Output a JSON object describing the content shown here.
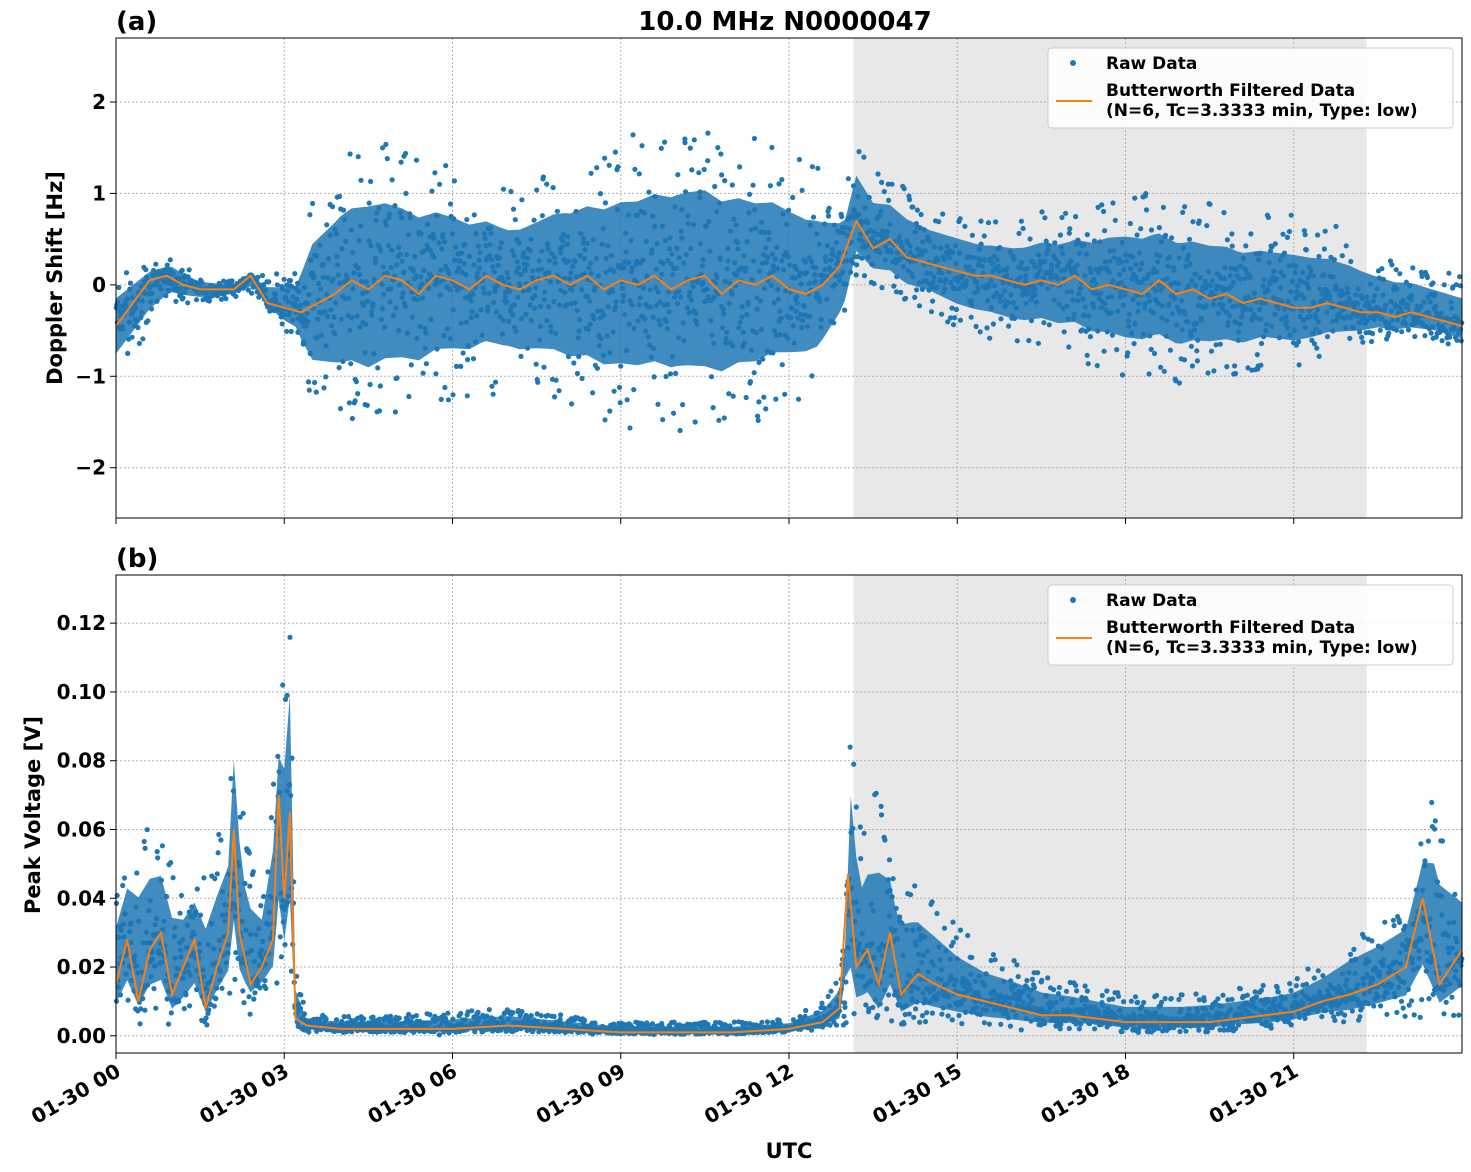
{
  "figure": {
    "title": "10.0 MHz N0000047",
    "xlabel": "UTC"
  },
  "colors": {
    "raw": "#1f77b4",
    "filtered": "#ff7f0e",
    "shade": "#e8e8e8"
  },
  "chart_data": [
    {
      "type": "scatter",
      "panel_label": "(a)",
      "ylabel": "Doppler Shift [Hz]",
      "xlim": [
        0,
        24
      ],
      "ylim": [
        -2.55,
        2.7
      ],
      "x_ticks": [
        0,
        3,
        6,
        9,
        12,
        15,
        18,
        21
      ],
      "x_tick_labels": [
        "01-30 00",
        "01-30 03",
        "01-30 06",
        "01-30 09",
        "01-30 12",
        "01-30 15",
        "01-30 18",
        "01-30 21"
      ],
      "y_ticks": [
        -2,
        -1,
        0,
        1,
        2
      ],
      "y_tick_labels": [
        "−2",
        "−1",
        "0",
        "1",
        "2"
      ],
      "grid": true,
      "shaded_span": [
        13.15,
        22.3
      ],
      "legend": {
        "placement": "upper right",
        "raw_label": "Raw Data",
        "filtered_label_1": "Butterworth Filtered Data",
        "filtered_label_2": "(N=6, Tc=3.3333 min, Type: low)"
      },
      "series": [
        {
          "name": "Raw Data",
          "style": "points",
          "note_envelope": "spread of raw points around filtered curve",
          "x": [
            0,
            0.5,
            1,
            1.5,
            2,
            2.5,
            3,
            3.2,
            3.5,
            4,
            4.5,
            5,
            5.5,
            6,
            6.5,
            7,
            7.5,
            8,
            8.5,
            9,
            9.5,
            10,
            10.5,
            11,
            11.5,
            12,
            12.5,
            13,
            13.2,
            13.5,
            14,
            14.5,
            15,
            15.5,
            16,
            16.5,
            17,
            17.5,
            18,
            18.5,
            19,
            19.5,
            20,
            20.5,
            21,
            21.5,
            22,
            22.5,
            23,
            23.5,
            24
          ],
          "lower": [
            -1.0,
            -0.6,
            -0.2,
            -0.2,
            -0.15,
            -0.1,
            -0.5,
            -0.6,
            -1.3,
            -1.5,
            -1.6,
            -1.5,
            -1.4,
            -1.3,
            -1.2,
            -1.2,
            -1.3,
            -1.4,
            -1.5,
            -1.6,
            -1.6,
            -1.6,
            -1.7,
            -1.6,
            -1.5,
            -1.3,
            -1.2,
            -0.6,
            0.1,
            0.0,
            -0.2,
            -0.3,
            -0.5,
            -0.6,
            -0.7,
            -0.7,
            -0.8,
            -0.9,
            -1.0,
            -1.0,
            -1.1,
            -1.0,
            -1.0,
            -0.9,
            -0.9,
            -0.8,
            -0.7,
            -0.6,
            -0.6,
            -0.6,
            -0.7
          ],
          "upper": [
            0.1,
            0.2,
            0.3,
            0.1,
            0.05,
            0.1,
            0.15,
            0.2,
            1.0,
            1.4,
            1.6,
            1.5,
            1.4,
            1.3,
            1.2,
            1.1,
            1.2,
            1.4,
            1.5,
            1.6,
            1.7,
            1.8,
            1.8,
            1.7,
            1.6,
            1.5,
            1.3,
            1.0,
            1.6,
            1.3,
            1.1,
            0.9,
            0.8,
            0.7,
            0.7,
            0.8,
            0.8,
            0.9,
            1.0,
            1.0,
            0.9,
            0.9,
            0.8,
            0.8,
            0.8,
            0.7,
            0.6,
            0.4,
            0.3,
            0.2,
            0.1
          ]
        },
        {
          "name": "Butterworth Filtered Data",
          "style": "line",
          "x": [
            0,
            0.3,
            0.6,
            0.9,
            1.2,
            1.5,
            1.8,
            2.1,
            2.4,
            2.7,
            3.0,
            3.3,
            3.6,
            3.9,
            4.2,
            4.5,
            4.8,
            5.1,
            5.4,
            5.7,
            6.0,
            6.3,
            6.6,
            6.9,
            7.2,
            7.5,
            7.8,
            8.1,
            8.4,
            8.7,
            9.0,
            9.3,
            9.6,
            9.9,
            10.2,
            10.5,
            10.8,
            11.1,
            11.4,
            11.7,
            12.0,
            12.3,
            12.6,
            12.9,
            13.2,
            13.5,
            13.8,
            14.1,
            14.4,
            14.7,
            15.0,
            15.3,
            15.6,
            15.9,
            16.2,
            16.5,
            16.8,
            17.1,
            17.4,
            17.7,
            18.0,
            18.3,
            18.6,
            18.9,
            19.2,
            19.5,
            19.8,
            20.1,
            20.4,
            20.7,
            21.0,
            21.3,
            21.6,
            21.9,
            22.2,
            22.5,
            22.8,
            23.1,
            23.4,
            23.7,
            24.0
          ],
          "y": [
            -0.45,
            -0.2,
            0.05,
            0.1,
            0.0,
            -0.05,
            -0.05,
            -0.05,
            0.1,
            -0.2,
            -0.25,
            -0.3,
            -0.2,
            -0.1,
            0.05,
            -0.05,
            0.1,
            0.05,
            -0.1,
            0.1,
            0.05,
            -0.05,
            0.1,
            0.0,
            -0.05,
            0.05,
            0.1,
            0.0,
            0.1,
            -0.05,
            0.05,
            0.0,
            0.1,
            -0.05,
            0.05,
            0.1,
            -0.1,
            0.05,
            0.0,
            0.1,
            -0.05,
            -0.1,
            0.0,
            0.2,
            0.7,
            0.4,
            0.5,
            0.3,
            0.25,
            0.2,
            0.15,
            0.1,
            0.1,
            0.05,
            0.0,
            0.05,
            0.0,
            0.1,
            -0.05,
            0.0,
            -0.05,
            -0.1,
            0.05,
            -0.1,
            -0.05,
            -0.15,
            -0.1,
            -0.2,
            -0.15,
            -0.2,
            -0.25,
            -0.25,
            -0.2,
            -0.25,
            -0.3,
            -0.3,
            -0.35,
            -0.3,
            -0.35,
            -0.4,
            -0.45
          ]
        }
      ]
    },
    {
      "type": "scatter",
      "panel_label": "(b)",
      "ylabel": "Peak Voltage [V]",
      "xlim": [
        0,
        24
      ],
      "ylim": [
        -0.005,
        0.134
      ],
      "x_ticks": [
        0,
        3,
        6,
        9,
        12,
        15,
        18,
        21
      ],
      "x_tick_labels": [
        "01-30 00",
        "01-30 03",
        "01-30 06",
        "01-30 09",
        "01-30 12",
        "01-30 15",
        "01-30 18",
        "01-30 21"
      ],
      "y_ticks": [
        0.0,
        0.02,
        0.04,
        0.06,
        0.08,
        0.1,
        0.12
      ],
      "y_tick_labels": [
        "0.00",
        "0.02",
        "0.04",
        "0.06",
        "0.08",
        "0.10",
        "0.12"
      ],
      "grid": true,
      "shaded_span": [
        13.15,
        22.3
      ],
      "legend": {
        "placement": "upper right",
        "raw_label": "Raw Data",
        "filtered_label_1": "Butterworth Filtered Data",
        "filtered_label_2": "(N=6, Tc=3.3333 min, Type: low)"
      },
      "series": [
        {
          "name": "Raw Data",
          "style": "points",
          "x": [
            0,
            0.4,
            0.8,
            1.2,
            1.6,
            2.0,
            2.1,
            2.3,
            2.6,
            2.9,
            3.1,
            3.2,
            3.4,
            4,
            5,
            6,
            7,
            8,
            9,
            10,
            11,
            12,
            12.6,
            13.0,
            13.1,
            13.3,
            13.6,
            13.9,
            14.2,
            14.6,
            15.0,
            15.5,
            16,
            16.5,
            17,
            17.5,
            18,
            18.5,
            19,
            19.5,
            20,
            20.5,
            21,
            21.5,
            22,
            22.5,
            23,
            23.5,
            24
          ],
          "lower": [
            0.005,
            0.008,
            0.005,
            0.004,
            0.006,
            0.01,
            0.012,
            0.01,
            0.012,
            0.015,
            0.02,
            0.002,
            0.001,
            0.001,
            0.001,
            0.001,
            0.001,
            0.001,
            0.001,
            0.001,
            0.001,
            0.001,
            0.002,
            0.003,
            0.005,
            0.003,
            0.002,
            0.003,
            0.003,
            0.003,
            0.003,
            0.002,
            0.002,
            0.002,
            0.002,
            0.002,
            0.001,
            0.001,
            0.001,
            0.001,
            0.002,
            0.002,
            0.003,
            0.004,
            0.004,
            0.005,
            0.005,
            0.005,
            0.006
          ],
          "upper": [
            0.045,
            0.065,
            0.06,
            0.045,
            0.05,
            0.065,
            0.097,
            0.06,
            0.045,
            0.09,
            0.127,
            0.02,
            0.006,
            0.006,
            0.006,
            0.007,
            0.008,
            0.006,
            0.004,
            0.004,
            0.004,
            0.005,
            0.01,
            0.02,
            0.096,
            0.06,
            0.074,
            0.05,
            0.047,
            0.04,
            0.032,
            0.025,
            0.022,
            0.018,
            0.016,
            0.014,
            0.012,
            0.012,
            0.012,
            0.013,
            0.014,
            0.015,
            0.017,
            0.022,
            0.03,
            0.035,
            0.04,
            0.072,
            0.05
          ]
        },
        {
          "name": "Butterworth Filtered Data",
          "style": "line",
          "x": [
            0,
            0.2,
            0.4,
            0.6,
            0.8,
            1.0,
            1.2,
            1.4,
            1.6,
            1.8,
            2.0,
            2.1,
            2.2,
            2.4,
            2.6,
            2.8,
            2.9,
            3.0,
            3.1,
            3.2,
            3.4,
            4,
            5,
            6,
            7,
            8,
            9,
            10,
            11,
            12,
            12.6,
            12.9,
            13.05,
            13.2,
            13.4,
            13.6,
            13.8,
            14.0,
            14.3,
            14.6,
            15.0,
            15.5,
            16,
            16.5,
            17,
            17.5,
            18,
            18.5,
            19,
            19.5,
            20,
            20.5,
            21,
            21.5,
            22,
            22.5,
            23,
            23.3,
            23.6,
            24
          ],
          "y": [
            0.015,
            0.028,
            0.01,
            0.025,
            0.03,
            0.012,
            0.02,
            0.028,
            0.008,
            0.02,
            0.03,
            0.06,
            0.03,
            0.015,
            0.02,
            0.028,
            0.07,
            0.04,
            0.065,
            0.005,
            0.003,
            0.002,
            0.002,
            0.002,
            0.003,
            0.002,
            0.001,
            0.001,
            0.001,
            0.002,
            0.004,
            0.008,
            0.047,
            0.02,
            0.025,
            0.015,
            0.03,
            0.012,
            0.018,
            0.015,
            0.012,
            0.01,
            0.008,
            0.006,
            0.006,
            0.005,
            0.004,
            0.004,
            0.004,
            0.004,
            0.005,
            0.006,
            0.007,
            0.01,
            0.012,
            0.015,
            0.02,
            0.04,
            0.015,
            0.025
          ]
        }
      ]
    }
  ]
}
